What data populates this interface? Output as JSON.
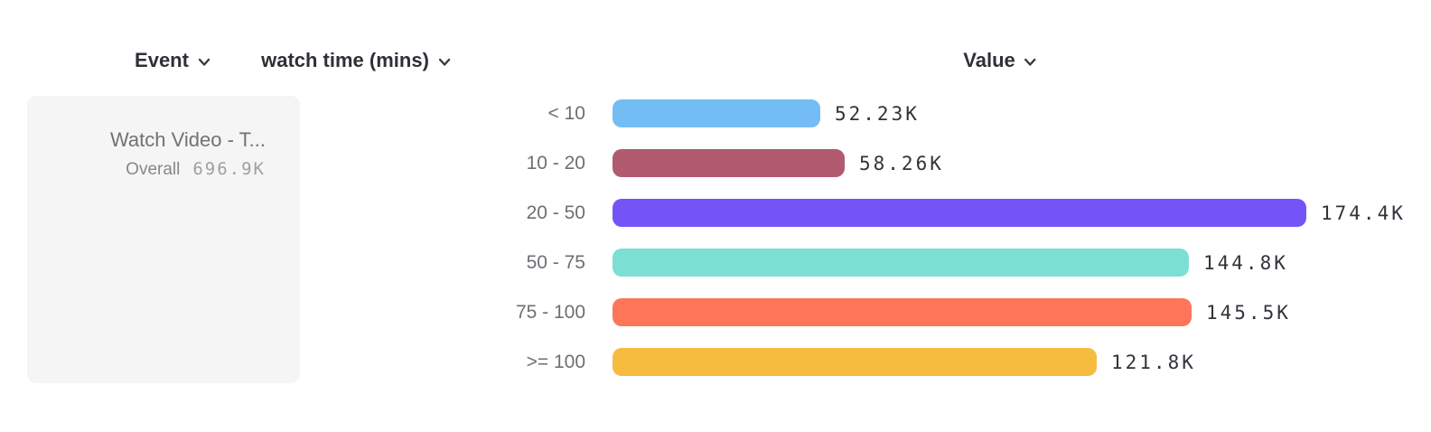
{
  "header": {
    "event_label": "Event",
    "breakdown_label": "watch time (mins)",
    "value_label": "Value"
  },
  "event_card": {
    "title": "Watch Video - T...",
    "overall_label": "Overall",
    "overall_value": "696.9K"
  },
  "chart_data": {
    "type": "bar",
    "orientation": "horizontal",
    "title": "",
    "category_axis_label": "watch time (mins)",
    "value_axis_label": "Value",
    "categories": [
      "< 10",
      "10 - 20",
      "20 - 50",
      "50 - 75",
      "75 - 100",
      ">= 100"
    ],
    "values": [
      52230,
      58260,
      174400,
      144800,
      145500,
      121800
    ],
    "value_labels": [
      "52.23K",
      "58.26K",
      "174.4K",
      "144.8K",
      "145.5K",
      "121.8K"
    ],
    "bar_colors": [
      "#74BDF4",
      "#B15A70",
      "#7454F6",
      "#7CDFD3",
      "#FD7659",
      "#F6BC40"
    ],
    "overall_total_label": "696.9K",
    "grid": false,
    "legend_position": "left-card"
  }
}
